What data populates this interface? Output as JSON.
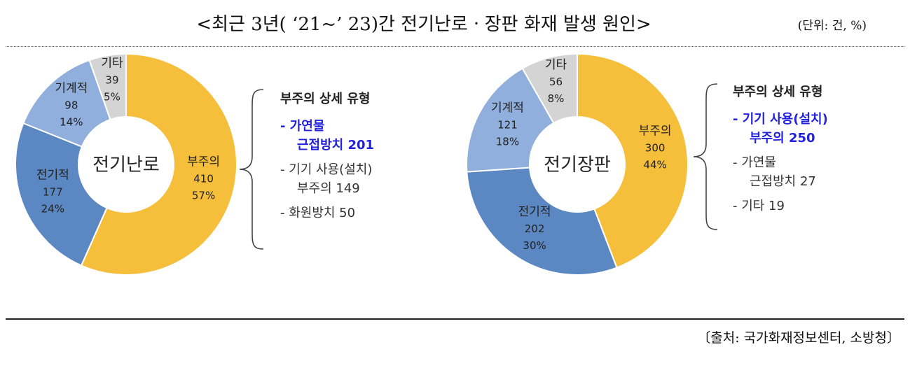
{
  "title": "<최근 3년( ‘21~’ 23)간 전기난로ㆍ장판 화재 발생 원인>",
  "unit": "(단위: 건, %)",
  "source": "〔출처: 국가화재정보센터, 소방청〕",
  "colors": {
    "negligence": "#f5bf3c",
    "electrical": "#5b88c2",
    "mechanical": "#91afdc",
    "other": "#d4d4d4",
    "highlight": "#2222dd"
  },
  "chart_data": [
    {
      "type": "pie",
      "center_label": "전기난로",
      "categories": [
        "부주의",
        "전기적",
        "기계적",
        "기타"
      ],
      "values": [
        410,
        177,
        98,
        39
      ],
      "percent_labels": [
        "57%",
        "24%",
        "14%",
        "5%"
      ],
      "detail": {
        "heading": "부주의 상세 유형",
        "items": [
          {
            "line1": "- 가연물",
            "line2": "근접방치 201",
            "highlight": true
          },
          {
            "line1": "- 기기 사용(설치)",
            "line2": "부주의 149",
            "highlight": false
          },
          {
            "line1": "- 화원방치 50",
            "line2": "",
            "highlight": false
          }
        ]
      }
    },
    {
      "type": "pie",
      "center_label": "전기장판",
      "categories": [
        "부주의",
        "전기적",
        "기계적",
        "기타"
      ],
      "values": [
        300,
        202,
        121,
        56
      ],
      "percent_labels": [
        "44%",
        "30%",
        "18%",
        "8%"
      ],
      "detail": {
        "heading": "부주의 상세 유형",
        "items": [
          {
            "line1": "- 기기 사용(설치)",
            "line2": "부주의 250",
            "highlight": true
          },
          {
            "line1": "- 가연물",
            "line2": "근접방치 27",
            "highlight": false
          },
          {
            "line1": "- 기타 19",
            "line2": "",
            "highlight": false
          }
        ]
      }
    }
  ]
}
